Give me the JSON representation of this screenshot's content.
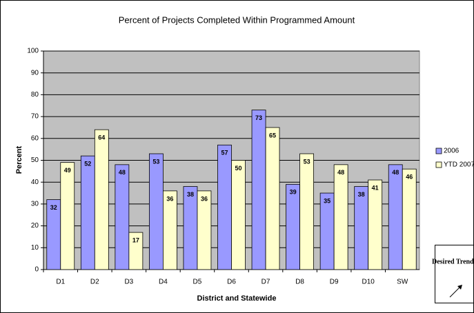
{
  "chart_data": {
    "type": "bar",
    "title": "Percent of Projects Completed Within Programmed Amount",
    "x_label": "District and Statewide",
    "y_label": "Percent",
    "categories": [
      "D1",
      "D2",
      "D3",
      "D4",
      "D5",
      "D6",
      "D7",
      "D8",
      "D9",
      "D10",
      "SW"
    ],
    "series": [
      {
        "name": "2006",
        "color": "#9999ff",
        "values": [
          32,
          52,
          48,
          53,
          38,
          57,
          73,
          39,
          35,
          38,
          48
        ]
      },
      {
        "name": "YTD 2007",
        "color": "#ffffcc",
        "values": [
          49,
          64,
          17,
          36,
          36,
          50,
          65,
          53,
          48,
          41,
          46
        ]
      }
    ],
    "ylim": [
      0,
      100
    ],
    "yticks": [
      0,
      10,
      20,
      30,
      40,
      50,
      60,
      70,
      80,
      90,
      100
    ],
    "grid": true,
    "legend": "right",
    "annotation": "Desired Trend:"
  }
}
